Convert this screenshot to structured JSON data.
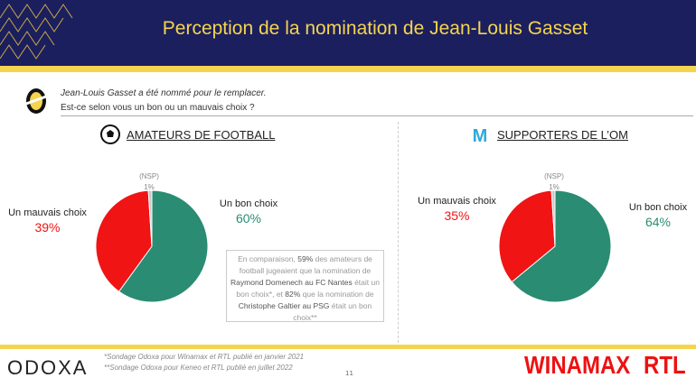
{
  "header": {
    "title": "Perception de la nomination de Jean-Louis Gasset"
  },
  "question": {
    "line1": "Jean-Louis Gasset a été nommé pour le remplacer.",
    "line2": "Est-ce selon vous un bon ou un mauvais choix ?"
  },
  "colors": {
    "good": "#2a8c72",
    "bad": "#f01414",
    "nsp": "#c8c8c8",
    "navy": "#1b1f5e",
    "yellow": "#f5d44f"
  },
  "chart_data": [
    {
      "type": "pie",
      "title": "AMATEURS DE FOOTBALL",
      "icon": "football-icon",
      "slices": [
        {
          "label": "Un bon choix",
          "value": 60,
          "display": "60%"
        },
        {
          "label": "Un mauvais choix",
          "value": 39,
          "display": "39%"
        },
        {
          "label": "(NSP)",
          "value": 1,
          "display": "1%"
        }
      ]
    },
    {
      "type": "pie",
      "title": "SUPPORTERS DE L’OM",
      "icon": "om-logo-icon",
      "slices": [
        {
          "label": "Un bon choix",
          "value": 64,
          "display": "64%"
        },
        {
          "label": "Un mauvais choix",
          "value": 35,
          "display": "35%"
        },
        {
          "label": "(NSP)",
          "value": 1,
          "display": "1%"
        }
      ]
    }
  ],
  "comparison": {
    "t1": "En comparaison, ",
    "b1": "59%",
    "t2": " des amateurs de football jugeaient que la nomination de ",
    "b2": "Raymond Domenech au FC Nantes",
    "t3": " était un bon choix*, et ",
    "b3": "82%",
    "t4": " que la nomination de ",
    "b4": "Christophe Galtier au PSG",
    "t5": " était un bon choix**"
  },
  "footer": {
    "note1": "*Sondage Odoxa pour Winamax et RTL publié en janvier 2021",
    "note2": "**Sondage Odoxa pour Keneo et RTL publié en juillet 2022",
    "page": "11",
    "logo_odoxa": "ODOXA",
    "logo_winamax": "WINAMAX",
    "logo_rtl": "RTL"
  }
}
